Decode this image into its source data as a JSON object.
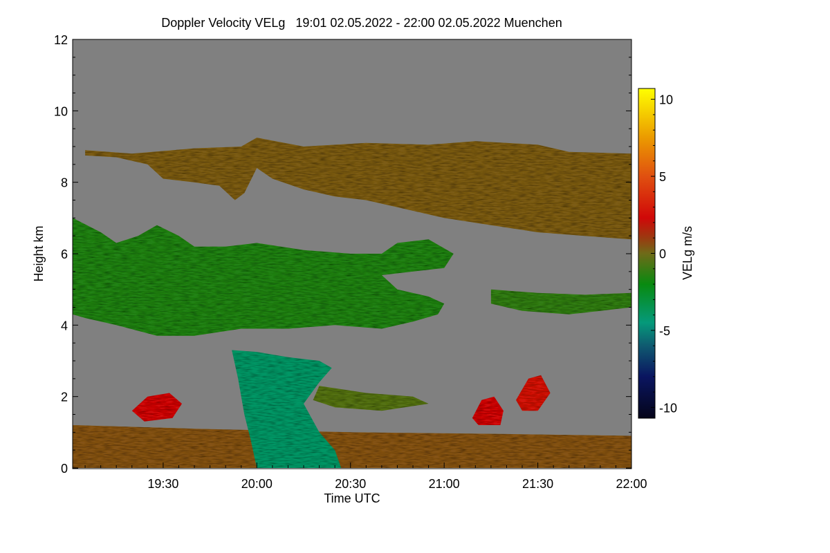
{
  "chart_data": {
    "type": "heatmap",
    "title": "Doppler Velocity VELg   19:01 02.05.2022 - 22:00 02.05.2022 Muenchen",
    "xlabel": "Time UTC",
    "ylabel": "Height km",
    "xlim_minutes_after_1900": [
      1,
      180
    ],
    "ylim": [
      0,
      12
    ],
    "x_ticks": [
      {
        "label": "19:30",
        "minute": 30
      },
      {
        "label": "20:00",
        "minute": 60
      },
      {
        "label": "20:30",
        "minute": 90
      },
      {
        "label": "21:00",
        "minute": 120
      },
      {
        "label": "21:30",
        "minute": 150
      },
      {
        "label": "22:00",
        "minute": 180
      }
    ],
    "y_ticks": [
      {
        "label": "0",
        "value": 0
      },
      {
        "label": "2",
        "value": 2
      },
      {
        "label": "4",
        "value": 4
      },
      {
        "label": "6",
        "value": 6
      },
      {
        "label": "8",
        "value": 8
      },
      {
        "label": "10",
        "value": 10
      },
      {
        "label": "12",
        "value": 12
      }
    ],
    "colorbar": {
      "label": "VELg m/s",
      "range": [
        -10.7,
        10.7
      ],
      "ticks": [
        {
          "label": "10",
          "value": 10
        },
        {
          "label": "5",
          "value": 5
        },
        {
          "label": "0",
          "value": 0
        },
        {
          "label": "-5",
          "value": -5
        },
        {
          "label": "-10",
          "value": -10
        }
      ],
      "stops": [
        {
          "value": -10.7,
          "color": "#05051a"
        },
        {
          "value": -8,
          "color": "#0a1560"
        },
        {
          "value": -6,
          "color": "#0f5a70"
        },
        {
          "value": -4.5,
          "color": "#05997a"
        },
        {
          "value": -2,
          "color": "#088a10"
        },
        {
          "value": 0,
          "color": "#6f6a18"
        },
        {
          "value": 1,
          "color": "#9a3a10"
        },
        {
          "value": 2.3,
          "color": "#d00808"
        },
        {
          "value": 5,
          "color": "#e05010"
        },
        {
          "value": 7.5,
          "color": "#eb9a00"
        },
        {
          "value": 10.7,
          "color": "#ffff00"
        }
      ]
    },
    "background_color": "#808080",
    "echo_regions": [
      {
        "name": "upper-cloud-layer",
        "velocity": 0.3,
        "points": [
          [
            5,
            8.9
          ],
          [
            20,
            8.8
          ],
          [
            40,
            8.95
          ],
          [
            55,
            9.0
          ],
          [
            60,
            9.25
          ],
          [
            75,
            9.0
          ],
          [
            95,
            9.1
          ],
          [
            115,
            9.05
          ],
          [
            130,
            9.15
          ],
          [
            150,
            9.05
          ],
          [
            160,
            8.85
          ],
          [
            180,
            8.8
          ],
          [
            180,
            6.4
          ],
          [
            165,
            6.5
          ],
          [
            150,
            6.6
          ],
          [
            135,
            6.8
          ],
          [
            120,
            7.0
          ],
          [
            105,
            7.3
          ],
          [
            95,
            7.5
          ],
          [
            85,
            7.6
          ],
          [
            75,
            7.8
          ],
          [
            65,
            8.1
          ],
          [
            60,
            8.4
          ],
          [
            56,
            7.7
          ],
          [
            53,
            7.5
          ],
          [
            48,
            7.9
          ],
          [
            40,
            8.0
          ],
          [
            30,
            8.1
          ],
          [
            25,
            8.5
          ],
          [
            15,
            8.7
          ],
          [
            5,
            8.75
          ]
        ]
      },
      {
        "name": "mid-cloud-layer",
        "velocity": -1.5,
        "points": [
          [
            1,
            7.0
          ],
          [
            10,
            6.6
          ],
          [
            15,
            6.3
          ],
          [
            22,
            6.5
          ],
          [
            28,
            6.8
          ],
          [
            35,
            6.5
          ],
          [
            40,
            6.2
          ],
          [
            50,
            6.2
          ],
          [
            60,
            6.3
          ],
          [
            75,
            6.1
          ],
          [
            90,
            6.0
          ],
          [
            100,
            6.0
          ],
          [
            105,
            6.3
          ],
          [
            115,
            6.4
          ],
          [
            123,
            6.0
          ],
          [
            120,
            5.6
          ],
          [
            110,
            5.5
          ],
          [
            100,
            5.4
          ],
          [
            105,
            5.0
          ],
          [
            115,
            4.8
          ],
          [
            120,
            4.6
          ],
          [
            118,
            4.3
          ],
          [
            110,
            4.1
          ],
          [
            100,
            3.9
          ],
          [
            85,
            4.0
          ],
          [
            70,
            3.9
          ],
          [
            55,
            3.9
          ],
          [
            40,
            3.7
          ],
          [
            28,
            3.7
          ],
          [
            15,
            4.0
          ],
          [
            5,
            4.2
          ],
          [
            1,
            4.3
          ]
        ]
      },
      {
        "name": "thin-layer-right",
        "velocity": -1.2,
        "points": [
          [
            135,
            5.0
          ],
          [
            150,
            4.9
          ],
          [
            165,
            4.85
          ],
          [
            180,
            4.9
          ],
          [
            180,
            4.5
          ],
          [
            170,
            4.4
          ],
          [
            160,
            4.3
          ],
          [
            145,
            4.4
          ],
          [
            135,
            4.6
          ]
        ]
      },
      {
        "name": "boundary-layer-clutter",
        "velocity": 0.5,
        "points": [
          [
            1,
            1.2
          ],
          [
            40,
            1.1
          ],
          [
            90,
            1.0
          ],
          [
            140,
            0.95
          ],
          [
            180,
            0.9
          ],
          [
            180,
            0
          ],
          [
            1,
            0
          ]
        ]
      },
      {
        "name": "low-layer-2km",
        "velocity": -0.5,
        "points": [
          [
            80,
            2.3
          ],
          [
            95,
            2.1
          ],
          [
            110,
            2.0
          ],
          [
            115,
            1.8
          ],
          [
            100,
            1.6
          ],
          [
            85,
            1.7
          ],
          [
            78,
            1.9
          ]
        ]
      },
      {
        "name": "precipitation-fall-streak",
        "velocity": -4.0,
        "points": [
          [
            52,
            3.3
          ],
          [
            60,
            3.25
          ],
          [
            70,
            3.1
          ],
          [
            80,
            3.0
          ],
          [
            84,
            2.8
          ],
          [
            80,
            2.4
          ],
          [
            75,
            1.8
          ],
          [
            80,
            1.0
          ],
          [
            85,
            0.5
          ],
          [
            87,
            0
          ],
          [
            60,
            0
          ],
          [
            58,
            0.8
          ],
          [
            56,
            1.5
          ],
          [
            54,
            2.5
          ]
        ]
      },
      {
        "name": "convective-cell-1",
        "velocity": 2.5,
        "points": [
          [
            20,
            1.6
          ],
          [
            25,
            2.0
          ],
          [
            32,
            2.1
          ],
          [
            36,
            1.8
          ],
          [
            33,
            1.4
          ],
          [
            24,
            1.3
          ]
        ]
      },
      {
        "name": "convective-cell-2",
        "velocity": 2.5,
        "points": [
          [
            129,
            1.4
          ],
          [
            132,
            1.9
          ],
          [
            136,
            2.0
          ],
          [
            139,
            1.6
          ],
          [
            138,
            1.2
          ],
          [
            131,
            1.2
          ]
        ]
      },
      {
        "name": "convective-cell-3",
        "velocity": 2.8,
        "points": [
          [
            143,
            1.9
          ],
          [
            147,
            2.5
          ],
          [
            151,
            2.6
          ],
          [
            154,
            2.1
          ],
          [
            150,
            1.6
          ],
          [
            145,
            1.6
          ]
        ]
      }
    ]
  }
}
